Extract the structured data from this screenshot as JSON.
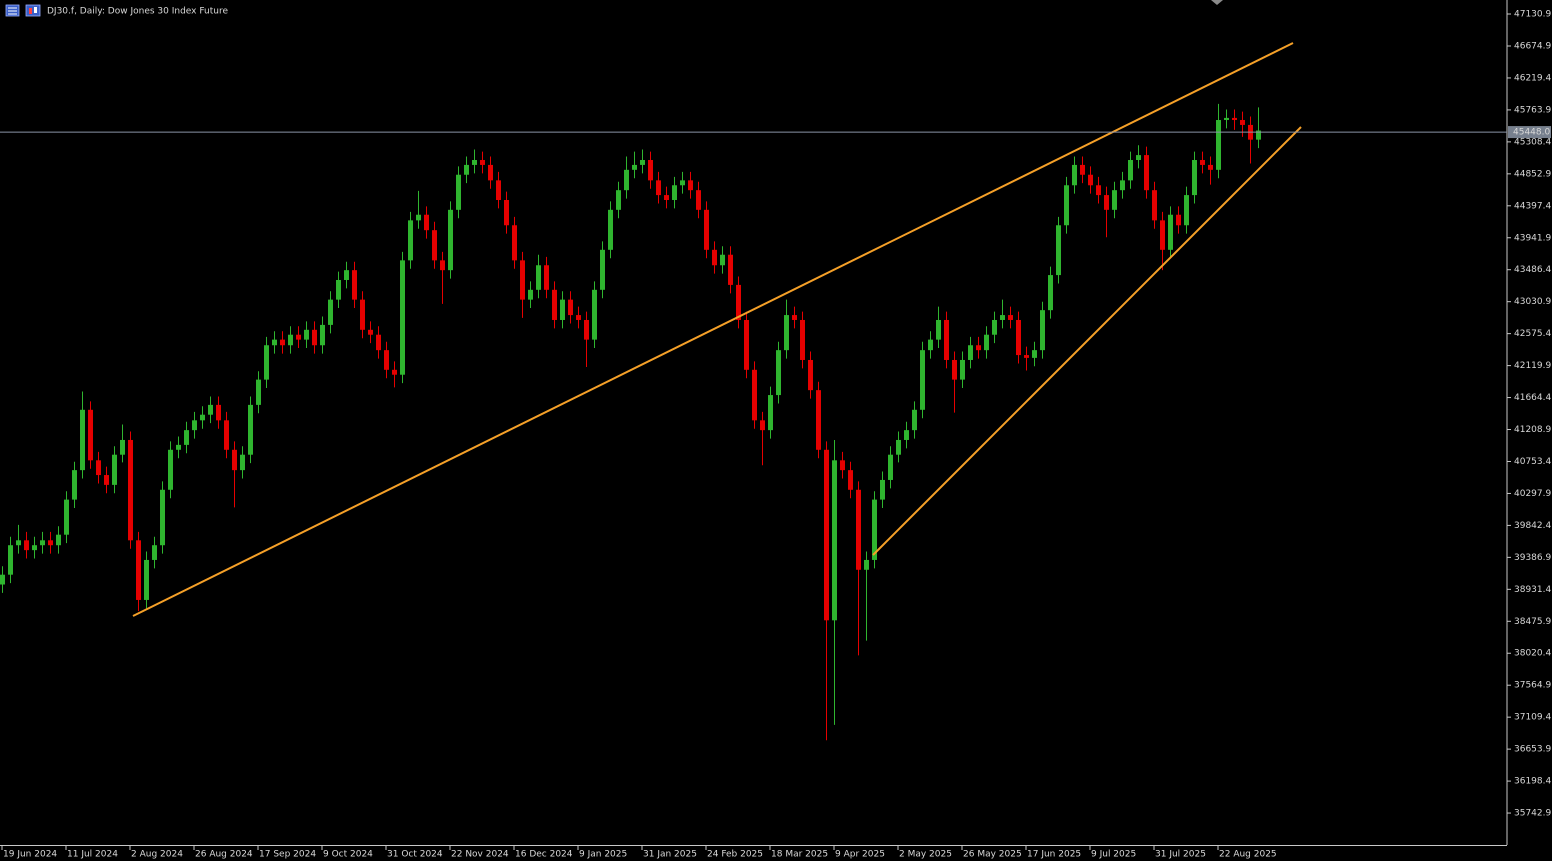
{
  "chart_data": {
    "type": "candlestick",
    "title": "DJ30.f, Daily:  Dow Jones 30 Index Future",
    "up_color": "#2fb52f",
    "down_color": "#e60000",
    "grid": false,
    "xlim": [
      -0.25,
      188.0
    ],
    "xticks": [
      {
        "value": 0,
        "label": "19 Jun 2024"
      },
      {
        "value": 8,
        "label": "11 Jul 2024"
      },
      {
        "value": 16,
        "label": "2 Aug 2024"
      },
      {
        "value": 24,
        "label": "26 Aug 2024"
      },
      {
        "value": 32,
        "label": "17 Sep 2024"
      },
      {
        "value": 40,
        "label": "9 Oct 2024"
      },
      {
        "value": 48,
        "label": "31 Oct 2024"
      },
      {
        "value": 56,
        "label": "22 Nov 2024"
      },
      {
        "value": 64,
        "label": "16 Dec 2024"
      },
      {
        "value": 72,
        "label": "9 Jan 2025"
      },
      {
        "value": 80,
        "label": "31 Jan 2025"
      },
      {
        "value": 88,
        "label": "24 Feb 2025"
      },
      {
        "value": 96,
        "label": "18 Mar 2025"
      },
      {
        "value": 104,
        "label": "9 Apr 2025"
      },
      {
        "value": 112,
        "label": "2 May 2025"
      },
      {
        "value": 120,
        "label": "26 May 2025"
      },
      {
        "value": 128,
        "label": "17 Jun 2025"
      },
      {
        "value": 136,
        "label": "9 Jul 2025"
      },
      {
        "value": 144,
        "label": "31 Jul 2025"
      },
      {
        "value": 152,
        "label": "22 Aug 2025"
      }
    ],
    "ylim": [
      35287.5,
      47330.4
    ],
    "yticks": [
      47130.9,
      46674.9,
      46219.4,
      45763.9,
      45308.4,
      44852.9,
      44397.4,
      43941.9,
      43486.4,
      43030.9,
      42575.4,
      42119.9,
      41664.4,
      41208.9,
      40753.4,
      40297.9,
      39842.4,
      39386.9,
      38931.4,
      38475.9,
      38020.4,
      37564.9,
      37109.4,
      36653.9,
      36198.4,
      35742.9
    ],
    "last_price": {
      "value": 45448,
      "label": "45448.0"
    },
    "candles": [
      [
        39000,
        39260,
        38880,
        39140
      ],
      [
        39140,
        39680,
        39020,
        39560
      ],
      [
        39560,
        39850,
        39440,
        39630
      ],
      [
        39630,
        39750,
        39370,
        39490
      ],
      [
        39490,
        39680,
        39370,
        39560
      ],
      [
        39560,
        39750,
        39440,
        39630
      ],
      [
        39630,
        39750,
        39440,
        39560
      ],
      [
        39560,
        39830,
        39440,
        39710
      ],
      [
        39710,
        40330,
        39590,
        40210
      ],
      [
        40210,
        40750,
        40090,
        40630
      ],
      [
        40630,
        41750,
        40510,
        41490
      ],
      [
        41490,
        41610,
        40650,
        40770
      ],
      [
        40770,
        40890,
        40440,
        40560
      ],
      [
        40560,
        40680,
        40300,
        40420
      ],
      [
        40420,
        40970,
        40300,
        40850
      ],
      [
        40850,
        41280,
        40740,
        41060
      ],
      [
        41060,
        41180,
        39510,
        39630
      ],
      [
        39630,
        39750,
        38620,
        38780
      ],
      [
        38780,
        39470,
        38660,
        39350
      ],
      [
        39350,
        39680,
        39230,
        39560
      ],
      [
        39560,
        40470,
        39440,
        40350
      ],
      [
        40350,
        41040,
        40230,
        40920
      ],
      [
        40920,
        41110,
        40800,
        40990
      ],
      [
        40990,
        41320,
        40870,
        41200
      ],
      [
        41200,
        41460,
        41080,
        41340
      ],
      [
        41340,
        41540,
        41220,
        41420
      ],
      [
        41420,
        41680,
        41300,
        41560
      ],
      [
        41560,
        41680,
        41220,
        41340
      ],
      [
        41340,
        41460,
        40800,
        40920
      ],
      [
        40920,
        41040,
        40100,
        40630
      ],
      [
        40630,
        40970,
        40510,
        40850
      ],
      [
        40850,
        41680,
        40730,
        41560
      ],
      [
        41560,
        42040,
        41440,
        41920
      ],
      [
        41920,
        42530,
        41800,
        42410
      ],
      [
        42410,
        42610,
        42290,
        42490
      ],
      [
        42490,
        42610,
        42290,
        42410
      ],
      [
        42410,
        42680,
        42290,
        42560
      ],
      [
        42560,
        42680,
        42370,
        42490
      ],
      [
        42490,
        42750,
        42370,
        42630
      ],
      [
        42630,
        42750,
        42290,
        42410
      ],
      [
        42410,
        42820,
        42290,
        42700
      ],
      [
        42700,
        43180,
        42580,
        43060
      ],
      [
        43060,
        43460,
        42940,
        43340
      ],
      [
        43340,
        43600,
        43220,
        43480
      ],
      [
        43480,
        43600,
        42940,
        43060
      ],
      [
        43060,
        43180,
        42510,
        42630
      ],
      [
        42630,
        42750,
        42440,
        42560
      ],
      [
        42560,
        42680,
        42220,
        42340
      ],
      [
        42340,
        42460,
        41940,
        42060
      ],
      [
        42060,
        42180,
        41810,
        41990
      ],
      [
        41990,
        43740,
        41870,
        43620
      ],
      [
        43620,
        44310,
        43500,
        44190
      ],
      [
        44190,
        44610,
        44070,
        44270
      ],
      [
        44270,
        44390,
        43930,
        44050
      ],
      [
        44050,
        44170,
        43500,
        43620
      ],
      [
        43620,
        43740,
        43000,
        43480
      ],
      [
        43480,
        44460,
        43360,
        44340
      ],
      [
        44340,
        44960,
        44220,
        44840
      ],
      [
        44840,
        45100,
        44720,
        44980
      ],
      [
        44980,
        45200,
        44860,
        45050
      ],
      [
        45050,
        45170,
        44860,
        44980
      ],
      [
        44980,
        45100,
        44640,
        44760
      ],
      [
        44760,
        44880,
        44360,
        44480
      ],
      [
        44480,
        44600,
        44000,
        44120
      ],
      [
        44120,
        44240,
        43500,
        43620
      ],
      [
        43620,
        43740,
        42800,
        43060
      ],
      [
        43060,
        43320,
        42940,
        43200
      ],
      [
        43200,
        43700,
        43080,
        43550
      ],
      [
        43550,
        43670,
        43080,
        43200
      ],
      [
        43200,
        43320,
        42650,
        42770
      ],
      [
        42770,
        43180,
        42650,
        43060
      ],
      [
        43060,
        43180,
        42720,
        42840
      ],
      [
        42840,
        42960,
        42650,
        42770
      ],
      [
        42770,
        42890,
        42100,
        42490
      ],
      [
        42490,
        43320,
        42370,
        43200
      ],
      [
        43200,
        43890,
        43080,
        43770
      ],
      [
        43770,
        44460,
        43650,
        44340
      ],
      [
        44340,
        44740,
        44220,
        44620
      ],
      [
        44620,
        45100,
        44500,
        44910
      ],
      [
        44910,
        45170,
        44790,
        44980
      ],
      [
        44980,
        45200,
        44860,
        45050
      ],
      [
        45050,
        45170,
        44640,
        44760
      ],
      [
        44760,
        44880,
        44430,
        44550
      ],
      [
        44550,
        44670,
        44360,
        44480
      ],
      [
        44480,
        44810,
        44360,
        44690
      ],
      [
        44690,
        44880,
        44570,
        44760
      ],
      [
        44760,
        44880,
        44500,
        44620
      ],
      [
        44620,
        44740,
        44220,
        44340
      ],
      [
        44340,
        44460,
        43650,
        43770
      ],
      [
        43770,
        43890,
        43430,
        43550
      ],
      [
        43550,
        43820,
        43430,
        43700
      ],
      [
        43700,
        43820,
        43150,
        43270
      ],
      [
        43270,
        43390,
        42650,
        42770
      ],
      [
        42770,
        42890,
        41940,
        42060
      ],
      [
        42060,
        42180,
        41220,
        41340
      ],
      [
        41340,
        41460,
        40700,
        41200
      ],
      [
        41200,
        41820,
        41080,
        41700
      ],
      [
        41700,
        42460,
        41580,
        42340
      ],
      [
        42340,
        43060,
        42220,
        42840
      ],
      [
        42840,
        42960,
        42650,
        42770
      ],
      [
        42770,
        42890,
        42080,
        42200
      ],
      [
        42200,
        42320,
        41650,
        41770
      ],
      [
        41770,
        41890,
        40800,
        40920
      ],
      [
        40920,
        41040,
        36780,
        38490
      ],
      [
        38490,
        41060,
        37000,
        40770
      ],
      [
        40770,
        40890,
        40510,
        40630
      ],
      [
        40630,
        40750,
        40230,
        40350
      ],
      [
        40350,
        40470,
        37990,
        39210
      ],
      [
        39210,
        39470,
        38200,
        39350
      ],
      [
        39350,
        40330,
        39230,
        40210
      ],
      [
        40210,
        40610,
        40090,
        40490
      ],
      [
        40490,
        40970,
        40370,
        40850
      ],
      [
        40850,
        41180,
        40740,
        41060
      ],
      [
        41060,
        41320,
        40940,
        41200
      ],
      [
        41200,
        41610,
        41080,
        41490
      ],
      [
        41490,
        42460,
        41370,
        42340
      ],
      [
        42340,
        42610,
        42220,
        42490
      ],
      [
        42490,
        42960,
        42370,
        42770
      ],
      [
        42770,
        42890,
        42080,
        42200
      ],
      [
        42200,
        42320,
        41450,
        41920
      ],
      [
        41920,
        42320,
        41800,
        42200
      ],
      [
        42200,
        42530,
        42080,
        42410
      ],
      [
        42410,
        42530,
        42220,
        42340
      ],
      [
        42340,
        42680,
        42220,
        42560
      ],
      [
        42560,
        42890,
        42440,
        42770
      ],
      [
        42770,
        43060,
        42650,
        42840
      ],
      [
        42840,
        42960,
        42650,
        42770
      ],
      [
        42770,
        42890,
        42150,
        42270
      ],
      [
        42270,
        42390,
        42050,
        42230
      ],
      [
        42230,
        42460,
        42110,
        42340
      ],
      [
        42340,
        43030,
        42220,
        42910
      ],
      [
        42910,
        43530,
        42790,
        43410
      ],
      [
        43410,
        44240,
        43290,
        44120
      ],
      [
        44120,
        44810,
        44000,
        44690
      ],
      [
        44690,
        45100,
        44570,
        44980
      ],
      [
        44980,
        45100,
        44720,
        44840
      ],
      [
        44840,
        44960,
        44570,
        44690
      ],
      [
        44690,
        44810,
        44430,
        44550
      ],
      [
        44550,
        44670,
        43950,
        44340
      ],
      [
        44340,
        44740,
        44220,
        44620
      ],
      [
        44620,
        44880,
        44500,
        44760
      ],
      [
        44760,
        45170,
        44640,
        45050
      ],
      [
        45050,
        45260,
        44930,
        45120
      ],
      [
        45120,
        45240,
        44500,
        44620
      ],
      [
        44620,
        44740,
        44070,
        44190
      ],
      [
        44190,
        44310,
        43480,
        43770
      ],
      [
        43770,
        44390,
        43650,
        44270
      ],
      [
        44270,
        44390,
        44000,
        44120
      ],
      [
        44120,
        44670,
        44000,
        44550
      ],
      [
        44550,
        45170,
        44430,
        45050
      ],
      [
        45050,
        45170,
        44860,
        44980
      ],
      [
        44980,
        45100,
        44700,
        44910
      ],
      [
        44910,
        45850,
        44790,
        45620
      ],
      [
        45620,
        45770,
        45500,
        45650
      ],
      [
        45650,
        45770,
        45480,
        45620
      ],
      [
        45620,
        45740,
        45380,
        45550
      ],
      [
        45550,
        45670,
        45000,
        45340
      ],
      [
        45340,
        45800,
        45220,
        45470
      ]
    ]
  }
}
